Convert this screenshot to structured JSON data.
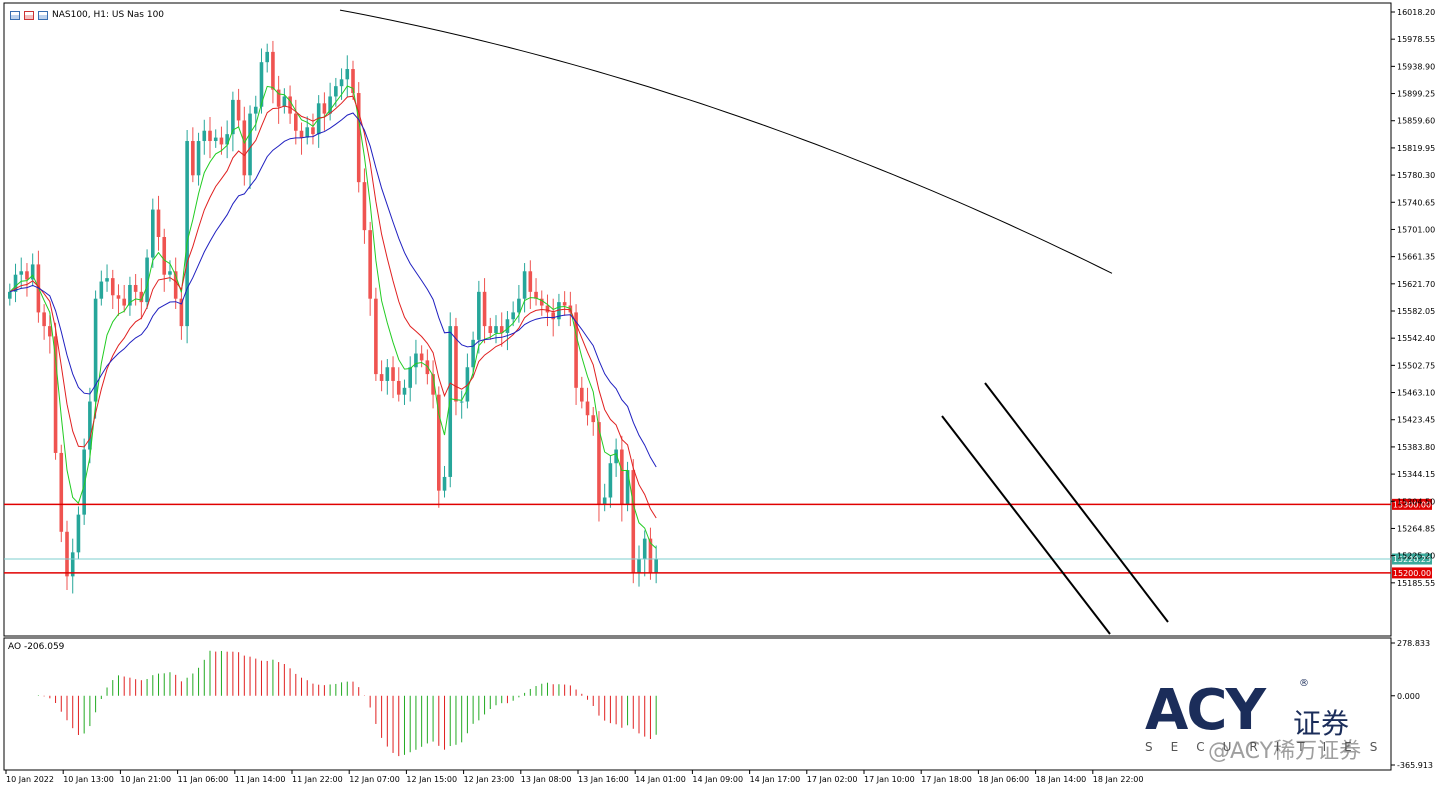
{
  "window": {
    "symbol_title": "NAS100, H1:  US Nas 100",
    "ao_label": "AO -206.059"
  },
  "colors": {
    "bull": "#26a69a",
    "bear": "#ef5350",
    "ma_green": "#22cc22",
    "ma_red": "#e02020",
    "ma_blue": "#2020c0",
    "ma_black": "#000000",
    "hline_red": "#e00000",
    "hline_cur": "#7fcfcf"
  },
  "chart_data": {
    "type": "candlestick",
    "instrument": "NAS100",
    "timeframe": "H1",
    "ylim": [
      15145.9,
      16018.2
    ],
    "y_ticks": [
      "16018.20",
      "15978.55",
      "15938.90",
      "15899.25",
      "15859.60",
      "15819.95",
      "15780.30",
      "15740.65",
      "15701.00",
      "15661.35",
      "15621.70",
      "15582.05",
      "15542.40",
      "15502.75",
      "15463.10",
      "15423.45",
      "15383.80",
      "15344.15",
      "15304.50",
      "15264.85",
      "15225.20",
      "15185.55"
    ],
    "x_ticks": [
      "10 Jan 2022",
      "10 Jan 13:00",
      "10 Jan 21:00",
      "11 Jan 06:00",
      "11 Jan 14:00",
      "11 Jan 22:00",
      "12 Jan 07:00",
      "12 Jan 15:00",
      "12 Jan 23:00",
      "13 Jan 08:00",
      "13 Jan 16:00",
      "14 Jan 01:00",
      "14 Jan 09:00",
      "14 Jan 17:00",
      "17 Jan 02:00",
      "17 Jan 10:00",
      "17 Jan 18:00",
      "18 Jan 06:00",
      "18 Jan 14:00",
      "18 Jan 22:00"
    ],
    "candles_close": [
      15610,
      15635,
      15640,
      15628,
      15650,
      15580,
      15560,
      15545,
      15375,
      15260,
      15195,
      15230,
      15285,
      15380,
      15450,
      15600,
      15625,
      15630,
      15605,
      15600,
      15590,
      15620,
      15610,
      15595,
      15660,
      15730,
      15690,
      15635,
      15640,
      15600,
      15560,
      15830,
      15780,
      15830,
      15845,
      15830,
      15835,
      15825,
      15840,
      15890,
      15860,
      15780,
      15870,
      15880,
      15945,
      15960,
      15905,
      15880,
      15895,
      15870,
      15845,
      15835,
      15850,
      15840,
      15885,
      15870,
      15895,
      15910,
      15920,
      15935,
      15900,
      15770,
      15700,
      15600,
      15490,
      15480,
      15500,
      15480,
      15460,
      15470,
      15500,
      15520,
      15510,
      15490,
      15460,
      15320,
      15340,
      15560,
      15450,
      15450,
      15500,
      15540,
      15610,
      15560,
      15550,
      15560,
      15550,
      15570,
      15580,
      15600,
      15640,
      15610,
      15600,
      15590,
      15580,
      15570,
      15595,
      15590,
      15580,
      15470,
      15450,
      15430,
      15420,
      15300,
      15310,
      15360,
      15380,
      15300,
      15350,
      15200,
      15220,
      15250,
      15200,
      15220
    ],
    "ma_black_approx": {
      "start_value": 16021,
      "end_value": 15637
    },
    "levels": [
      {
        "label": "15300.00",
        "value": 15300.0,
        "color": "red"
      },
      {
        "label": "15220.25",
        "value": 15220.25,
        "color": "current"
      },
      {
        "label": "15200.00",
        "value": 15200.0,
        "color": "red"
      }
    ],
    "trend_channel": {
      "upper": [
        [
          15428,
          15474
        ],
        [
          15560,
          15170
        ]
      ],
      "lower": [
        [
          15455,
          15470
        ],
        [
          15190,
          15150
        ]
      ]
    },
    "ao": {
      "ylim": [
        -365.913,
        278.833
      ],
      "y_ticks": [
        "278.833",
        "0.000",
        "-365.913"
      ],
      "current": -206.059
    }
  },
  "branding": {
    "logo": "ACY",
    "logo_cn": "证券",
    "logo_sub": "SECURITIES",
    "registered": "®",
    "watermark": "@ACY稀万证券"
  }
}
